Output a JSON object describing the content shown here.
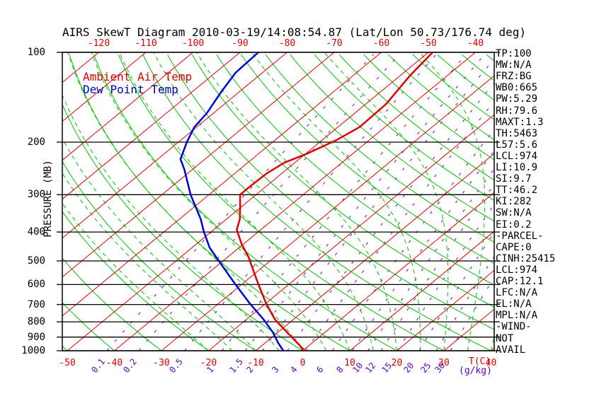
{
  "title": "AIRS SkewT Diagram 2010-03-19/14:08:54.87 (Lat/Lon 50.73/176.74 deg)",
  "legend": {
    "temp": "Ambient Air Temp",
    "dew": "Dew Point Temp"
  },
  "axes": {
    "pressure_label": "PRESSURE (MB)",
    "pressure_ticks": [
      100,
      200,
      300,
      400,
      500,
      600,
      700,
      800,
      900,
      1000
    ],
    "top_temp_ticks": [
      -120,
      -110,
      -100,
      -90,
      -80,
      -70,
      -60,
      -50,
      -40
    ],
    "bottom_temp_ticks": [
      -50,
      -40,
      -30,
      -20,
      -10,
      0,
      10,
      20,
      30,
      40
    ],
    "t_unit": "T(C)",
    "mix_unit": "(g/kg)",
    "mixing_ratio_labels": [
      0.1,
      0.2,
      0.5,
      1,
      1.5,
      2,
      3,
      4,
      6,
      8,
      10,
      12,
      15,
      20,
      25,
      30
    ]
  },
  "stats": [
    "TP:100",
    "MW:N/A",
    "FRZ:BG",
    "WB0:665",
    "PW:5.29",
    "RH:79.6",
    "MAXT:1.3",
    "TH:5463",
    "L57:5.6",
    "LCL:974",
    "LI:10.9",
    "SI:9.7",
    "TT:46.2",
    "KI:282",
    "SW:N/A",
    "EI:0.2",
    "-PARCEL-",
    "CAPE:0",
    "CINH:25415",
    "LCL:974",
    "CAP:12.1",
    "LFC:N/A",
    "EL:N/A",
    "MPL:N/A",
    "-WIND-",
    "NOT",
    "AVAIL"
  ],
  "colors": {
    "isotherm": "#e10000",
    "dry_adiabat": "#00c400",
    "moist_adiabat": "#00c400",
    "mixing_ratio": "#6600bb",
    "frame": "#000000",
    "temp_curve": "#e00000",
    "dew_curve": "#0000dd",
    "red_text": "#dd0000",
    "purple_text": "#6600bb"
  },
  "chart_data": {
    "type": "line",
    "subtype": "skewt-logp",
    "title": "AIRS SkewT Diagram 2010-03-19/14:08:54.87 (Lat/Lon 50.73/176.74 deg)",
    "xlabel": "T(C)",
    "ylabel": "PRESSURE (MB)",
    "y_scale": "log",
    "ylim": [
      1000,
      100
    ],
    "x_bottom_range": [
      -50,
      40
    ],
    "x_top_range": [
      -120,
      -40
    ],
    "isotherm_step_c": 10,
    "mixing_ratio_g_kg": [
      0.1,
      0.2,
      0.5,
      1,
      1.5,
      2,
      3,
      4,
      6,
      8,
      10,
      12,
      15,
      20,
      25,
      30
    ],
    "series": [
      {
        "name": "Ambient Air Temp",
        "points_p_t": [
          [
            1000,
            0.4
          ],
          [
            942,
            -3.1
          ],
          [
            867,
            -8.1
          ],
          [
            786,
            -13.9
          ],
          [
            693,
            -20.0
          ],
          [
            592,
            -27.0
          ],
          [
            484,
            -35.7
          ],
          [
            439,
            -40.4
          ],
          [
            393,
            -45.1
          ],
          [
            362,
            -47.2
          ],
          [
            334,
            -49.8
          ],
          [
            300,
            -53.4
          ],
          [
            280,
            -53.4
          ],
          [
            254,
            -53.2
          ],
          [
            234,
            -52.2
          ],
          [
            219,
            -49.8
          ],
          [
            197,
            -47.0
          ],
          [
            178,
            -45.4
          ],
          [
            149,
            -45.7
          ],
          [
            120,
            -47.9
          ],
          [
            100,
            -49.1
          ]
        ]
      },
      {
        "name": "Dew Point Temp",
        "points_p_t": [
          [
            1000,
            -4.1
          ],
          [
            942,
            -7.2
          ],
          [
            867,
            -11.1
          ],
          [
            786,
            -16.3
          ],
          [
            693,
            -23.5
          ],
          [
            592,
            -32.0
          ],
          [
            484,
            -42.6
          ],
          [
            451,
            -46.3
          ],
          [
            398,
            -51.7
          ],
          [
            362,
            -55.5
          ],
          [
            300,
            -63.9
          ],
          [
            247,
            -71.7
          ],
          [
            228,
            -75.2
          ],
          [
            200,
            -78.2
          ],
          [
            178,
            -80.5
          ],
          [
            160,
            -81.4
          ],
          [
            136,
            -83.8
          ],
          [
            117,
            -85.7
          ],
          [
            100,
            -86.1
          ]
        ]
      }
    ]
  }
}
